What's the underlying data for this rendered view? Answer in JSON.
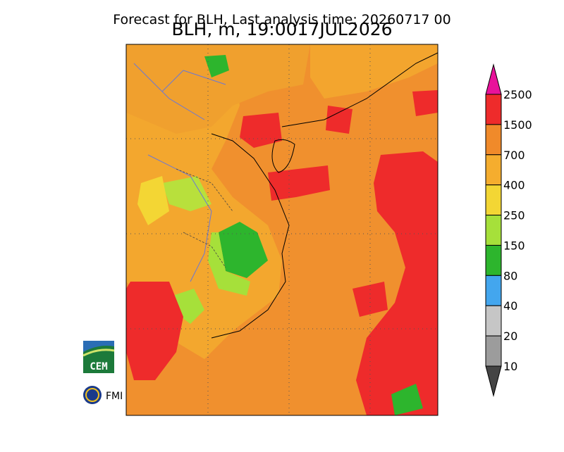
{
  "header": {
    "title": "Forecast for BLH, Last analysis time: 20260717 00",
    "subtitle": "BLH, m, 19:0017JUL2026"
  },
  "colorbar": {
    "labels": [
      "2500",
      "1500",
      "700",
      "400",
      "250",
      "150",
      "80",
      "40",
      "20",
      "10"
    ],
    "colors": [
      "#e8129a",
      "#ee2b2b",
      "#f08a2a",
      "#f5ad2e",
      "#f3d634",
      "#a6e03a",
      "#2db52d",
      "#43a6ee",
      "#c6c6c6",
      "#9c9c9c",
      "#444444"
    ]
  },
  "logos": {
    "cem": "CEM",
    "fmi": "FMI"
  }
}
